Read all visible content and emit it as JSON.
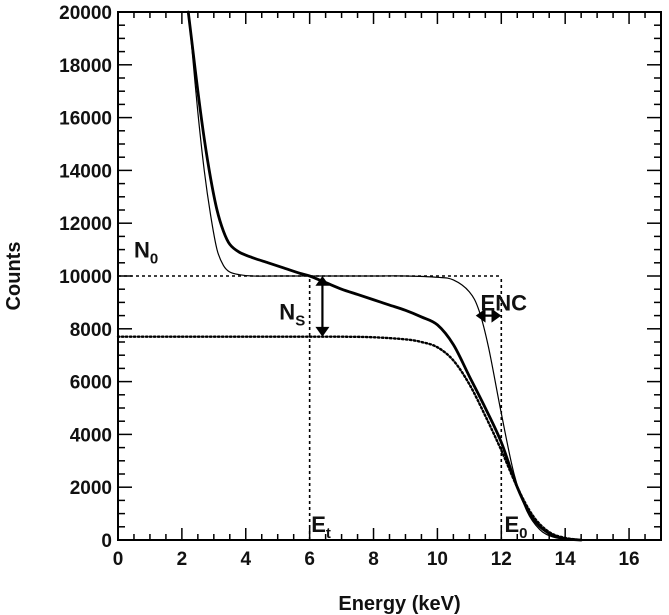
{
  "chart_data": {
    "type": "line",
    "title": "",
    "xlabel": "Energy (keV)",
    "ylabel": "Counts",
    "xlim": [
      0,
      17
    ],
    "ylim": [
      0,
      20000
    ],
    "x_ticks": [
      0,
      2,
      4,
      6,
      8,
      10,
      12,
      14,
      16
    ],
    "y_ticks": [
      0,
      2000,
      4000,
      6000,
      8000,
      10000,
      12000,
      14000,
      16000,
      18000,
      20000
    ],
    "grid": false,
    "series": [
      {
        "style": "thick-solid",
        "x": [
          2.2,
          2.3,
          2.5,
          2.7,
          2.9,
          3.1,
          3.3,
          3.5,
          3.8,
          4.2,
          4.7,
          5.2,
          5.7,
          6.0,
          6.5,
          7.0,
          7.5,
          8.0,
          8.5,
          9.0,
          9.5,
          10.0,
          10.5,
          11.0,
          11.5,
          12.0,
          12.5,
          13.0,
          13.5,
          14.0,
          14.5
        ],
        "y": [
          20000,
          19000,
          17000,
          15200,
          13700,
          12500,
          11700,
          11200,
          10900,
          10700,
          10500,
          10300,
          10100,
          10000,
          9750,
          9500,
          9300,
          9100,
          8900,
          8700,
          8450,
          8150,
          7400,
          6200,
          5000,
          3700,
          2000,
          800,
          250,
          50,
          0
        ]
      },
      {
        "style": "thin-solid",
        "x": [
          2.2,
          2.3,
          2.5,
          2.7,
          2.9,
          3.1,
          3.3,
          3.5,
          3.8,
          4.2,
          5.0,
          6.0,
          7.0,
          8.0,
          9.0,
          10.0,
          10.5,
          11.0,
          11.3,
          11.6,
          12.0,
          12.4,
          12.8,
          13.2,
          13.6,
          14.0,
          14.5
        ],
        "y": [
          20000,
          18800,
          16200,
          14000,
          12300,
          11000,
          10400,
          10150,
          10050,
          10000,
          10000,
          10000,
          10000,
          10000,
          10000,
          9950,
          9850,
          9400,
          8700,
          7300,
          4800,
          2500,
          1100,
          400,
          120,
          30,
          0
        ]
      },
      {
        "style": "dotted",
        "x": [
          0,
          2,
          4,
          6,
          7,
          8,
          9,
          9.5,
          10,
          10.5,
          11,
          11.5,
          12,
          12.5,
          13,
          13.5,
          14,
          14.5
        ],
        "y": [
          7700,
          7700,
          7700,
          7700,
          7700,
          7680,
          7600,
          7500,
          7300,
          6800,
          5900,
          4700,
          3400,
          2000,
          900,
          300,
          80,
          0
        ]
      }
    ],
    "reference_lines": [
      {
        "kind": "horizontal",
        "y": 10000,
        "x_range": [
          0,
          12
        ],
        "style": "dashed"
      },
      {
        "kind": "vertical",
        "x": 12,
        "y_range": [
          0,
          10000
        ],
        "style": "dashed"
      },
      {
        "kind": "vertical",
        "x": 6,
        "y_range": [
          0,
          10000
        ],
        "style": "dashed"
      }
    ],
    "annotations": {
      "N0": {
        "main": "N",
        "sub": "0",
        "x": 0.5,
        "y": 10700
      },
      "NS": {
        "main": "N",
        "sub": "S",
        "x": 5.05,
        "y": 8350
      },
      "ENC": {
        "main": "ENC",
        "x": 11.35,
        "y": 8700
      },
      "Et": {
        "main": "E",
        "sub": "t",
        "x": 6.05,
        "y": 300
      },
      "E0": {
        "main": "E",
        "sub": "0",
        "x": 12.1,
        "y": 300
      }
    },
    "arrows": [
      {
        "name": "ns-arrow",
        "x": 6.4,
        "y_from": 7700,
        "y_to": 10000
      },
      {
        "name": "enc-arrow",
        "y": 8500,
        "x_from": 11.2,
        "x_to": 12.0
      }
    ]
  }
}
